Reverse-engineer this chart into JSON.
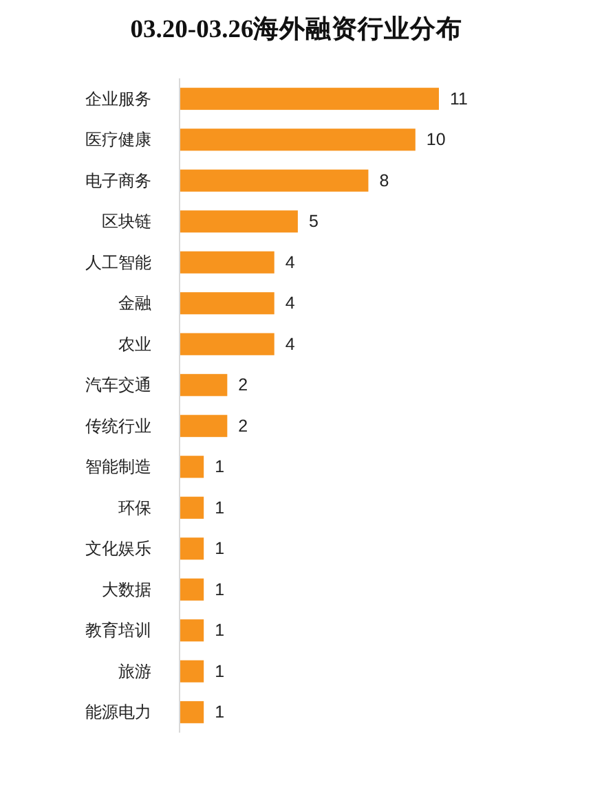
{
  "chart_data": {
    "type": "bar",
    "orientation": "horizontal",
    "title": "03.20-03.26海外融资行业分布",
    "categories": [
      "企业服务",
      "医疗健康",
      "电子商务",
      "区块链",
      "人工智能",
      "金融",
      "农业",
      "汽车交通",
      "传统行业",
      "智能制造",
      "环保",
      "文化娱乐",
      "大数据",
      "教育培训",
      "旅游",
      "能源电力"
    ],
    "values": [
      11,
      10,
      8,
      5,
      4,
      4,
      4,
      2,
      2,
      1,
      1,
      1,
      1,
      1,
      1,
      1
    ],
    "color": "#f7941e",
    "data_labels": true
  }
}
